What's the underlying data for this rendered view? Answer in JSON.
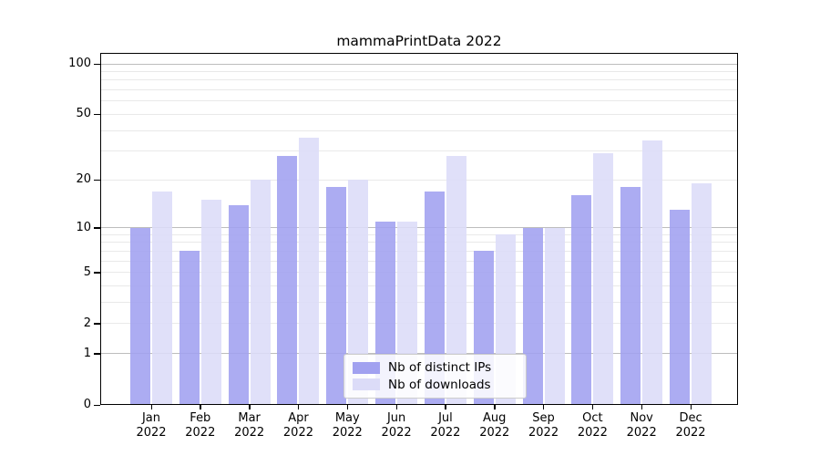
{
  "title": "mammaPrintData 2022",
  "chart_data": {
    "type": "bar",
    "title": "mammaPrintData 2022",
    "categories": [
      "Jan 2022",
      "Feb 2022",
      "Mar 2022",
      "Apr 2022",
      "May 2022",
      "Jun 2022",
      "Jul 2022",
      "Aug 2022",
      "Sep 2022",
      "Oct 2022",
      "Nov 2022",
      "Dec 2022"
    ],
    "series": [
      {
        "name": "Nb of distinct IPs",
        "color": "#a1a1f0",
        "values": [
          10,
          7,
          14,
          28,
          18,
          11,
          17,
          7,
          10,
          16,
          18,
          13
        ]
      },
      {
        "name": "Nb of downloads",
        "color": "#dcdcf8",
        "values": [
          17,
          15,
          20,
          36,
          20,
          11,
          28,
          9,
          10,
          29,
          35,
          19
        ]
      }
    ],
    "xlabel": "",
    "ylabel": "",
    "y_scale": "log10(value+1)",
    "y_ticks": [
      0,
      1,
      2,
      5,
      10,
      20,
      50,
      100
    ],
    "y_major_gridlines": [
      1,
      10,
      100
    ],
    "y_minor_gridlines": [
      2,
      3,
      4,
      5,
      6,
      7,
      8,
      9,
      20,
      30,
      40,
      50,
      60,
      70,
      80,
      90
    ],
    "ylim": [
      0,
      115
    ],
    "grid": true,
    "legend_position": "lower center",
    "colors": {
      "major_grid": "#bdbdbd",
      "minor_grid": "#e9e9e9",
      "axis": "#000000",
      "background": "#ffffff"
    }
  }
}
